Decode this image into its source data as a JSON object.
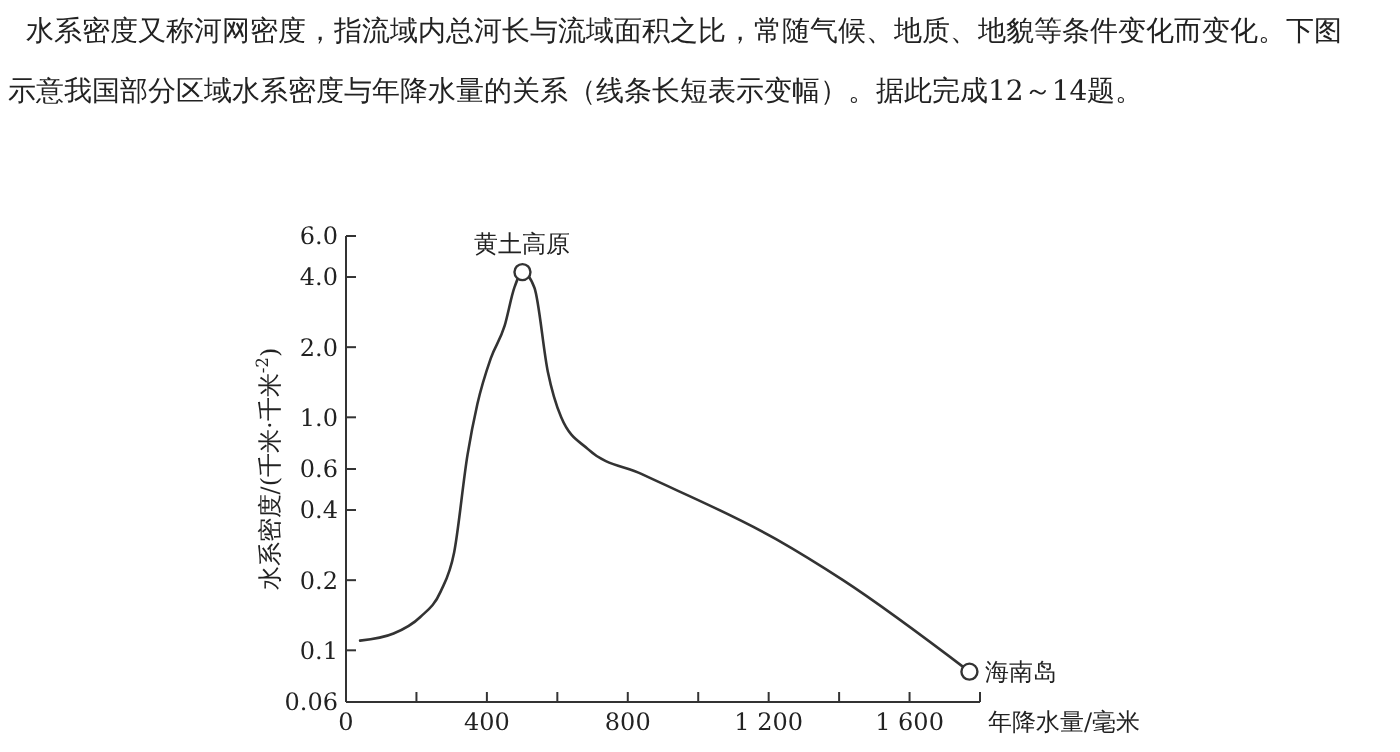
{
  "chart_data": {
    "type": "line",
    "title": "水系密度又称河网密度，指流域内总河长与流域面积之比，常随气候、地质、地貌等条件变化而变化。下图示意我国部分区域水系密度与年降水量的关系（线条长短表示变幅）。据此完成12～14题。",
    "xlabel": "年降水量/毫米",
    "ylabel": "水系密度/(千米·千米$^{-2}$)",
    "log": "y",
    "grid": false,
    "xlim": [
      0,
      1800
    ],
    "xticks": [
      0,
      {
        "value": 200,
        "label": null
      },
      400,
      {
        "value": 600,
        "label": null
      },
      800,
      {
        "value": 1000,
        "label": null
      },
      {
        "value": 1200,
        "label": "1 200"
      },
      {
        "value": 1400,
        "label": null
      },
      {
        "value": 1600,
        "label": "1 600"
      },
      {
        "value": 1800,
        "label": null
      }
    ],
    "ylim": [
      0.06,
      6
    ],
    "yticks": [
      0.06,
      {
        "value": 0.1,
        "label": "0.1"
      },
      0.2,
      0.4,
      0.6,
      {
        "value": 1,
        "label": "1.0"
      },
      {
        "value": 2,
        "label": "2.0"
      },
      {
        "value": 4,
        "label": "4.0"
      },
      {
        "value": 6,
        "label": "6.0"
      }
    ],
    "series": [
      {
        "color": "#333333",
        "line_style": "solid",
        "marker": "none",
        "x": [
          40,
          135,
          211,
          269,
          307,
          345,
          373,
          411,
          450,
          478,
          501,
          535,
          573,
          611,
          687,
          840,
          1221,
          1411,
          1770
        ],
        "values": [
          0.11,
          0.118,
          0.139,
          0.179,
          0.263,
          0.69,
          1.14,
          1.79,
          2.46,
          3.6,
          4.2,
          3.6,
          1.57,
          1.0,
          0.73,
          0.57,
          0.3,
          0.2,
          0.081
        ]
      },
      {
        "type": "scatter",
        "color": "#333333",
        "marker": "circle",
        "x": [
          501,
          1770
        ],
        "values": [
          4.2,
          0.081
        ]
      }
    ],
    "annotations": [
      {
        "text": "黄土高原",
        "x": 501,
        "y": 4.2
      },
      {
        "text": "海南岛",
        "x": 1770,
        "y": 0.081
      }
    ]
  }
}
